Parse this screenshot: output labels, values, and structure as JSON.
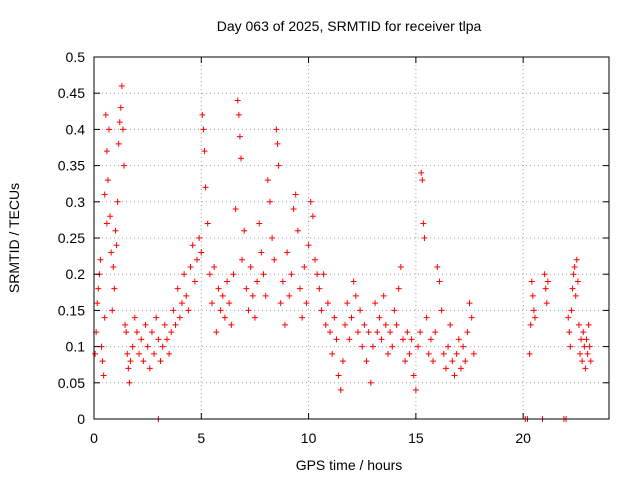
{
  "chart_data": {
    "type": "scatter",
    "title": "Day 063 of 2025, SRMTID for receiver tlpa",
    "xlabel": "GPS time / hours",
    "ylabel": "SRMTID / TECUs",
    "xlim": [
      0,
      24
    ],
    "ylim": [
      0,
      0.5
    ],
    "xticks": [
      0,
      5,
      10,
      15,
      20
    ],
    "xtick_labels": [
      "0",
      "5",
      "10",
      "15",
      "20"
    ],
    "yticks": [
      0,
      0.05,
      0.1,
      0.15,
      0.2,
      0.25,
      0.3,
      0.35,
      0.4,
      0.45,
      0.5
    ],
    "ytick_labels": [
      "0",
      "0.05",
      "0.1",
      "0.15",
      "0.2",
      "0.25",
      "0.3",
      "0.35",
      "0.4",
      "0.45",
      "0.5"
    ],
    "grid": true,
    "legend": "none",
    "marker": "plus",
    "series": [
      {
        "color": "#ff0000",
        "points": [
          [
            0.05,
            0.09
          ],
          [
            0.1,
            0.12
          ],
          [
            0.15,
            0.16
          ],
          [
            0.2,
            0.18
          ],
          [
            0.25,
            0.2
          ],
          [
            0.3,
            0.22
          ],
          [
            0.35,
            0.1
          ],
          [
            0.4,
            0.08
          ],
          [
            0.45,
            0.06
          ],
          [
            0.5,
            0.14
          ],
          [
            0.5,
            0.31
          ],
          [
            0.55,
            0.42
          ],
          [
            0.6,
            0.37
          ],
          [
            0.6,
            0.27
          ],
          [
            0.65,
            0.33
          ],
          [
            0.7,
            0.4
          ],
          [
            0.75,
            0.28
          ],
          [
            0.8,
            0.23
          ],
          [
            0.85,
            0.15
          ],
          [
            0.9,
            0.21
          ],
          [
            0.95,
            0.18
          ],
          [
            1.0,
            0.26
          ],
          [
            1.05,
            0.24
          ],
          [
            1.1,
            0.3
          ],
          [
            1.15,
            0.38
          ],
          [
            1.2,
            0.41
          ],
          [
            1.25,
            0.43
          ],
          [
            1.3,
            0.46
          ],
          [
            1.35,
            0.4
          ],
          [
            1.4,
            0.35
          ],
          [
            1.45,
            0.13
          ],
          [
            1.5,
            0.12
          ],
          [
            1.55,
            0.09
          ],
          [
            1.6,
            0.07
          ],
          [
            1.65,
            0.05
          ],
          [
            1.7,
            0.08
          ],
          [
            1.8,
            0.1
          ],
          [
            1.9,
            0.14
          ],
          [
            2.0,
            0.12
          ],
          [
            2.1,
            0.09
          ],
          [
            2.2,
            0.11
          ],
          [
            2.3,
            0.08
          ],
          [
            2.4,
            0.13
          ],
          [
            2.5,
            0.1
          ],
          [
            2.6,
            0.07
          ],
          [
            2.7,
            0.12
          ],
          [
            2.8,
            0.09
          ],
          [
            2.9,
            0.14
          ],
          [
            3.0,
            0.11
          ],
          [
            3.1,
            0.08
          ],
          [
            3.2,
            0.1
          ],
          [
            3.3,
            0.13
          ],
          [
            3.4,
            0.11
          ],
          [
            3.5,
            0.09
          ],
          [
            3.6,
            0.12
          ],
          [
            3.7,
            0.15
          ],
          [
            3.8,
            0.13
          ],
          [
            3.9,
            0.18
          ],
          [
            4.0,
            0.14
          ],
          [
            4.1,
            0.16
          ],
          [
            4.2,
            0.2
          ],
          [
            4.3,
            0.17
          ],
          [
            4.4,
            0.15
          ],
          [
            4.5,
            0.21
          ],
          [
            4.6,
            0.24
          ],
          [
            4.7,
            0.19
          ],
          [
            4.8,
            0.22
          ],
          [
            4.9,
            0.25
          ],
          [
            5.0,
            0.23
          ],
          [
            5.05,
            0.42
          ],
          [
            5.1,
            0.4
          ],
          [
            5.15,
            0.37
          ],
          [
            5.2,
            0.32
          ],
          [
            5.3,
            0.27
          ],
          [
            5.4,
            0.2
          ],
          [
            5.5,
            0.16
          ],
          [
            5.6,
            0.21
          ],
          [
            5.7,
            0.12
          ],
          [
            5.8,
            0.18
          ],
          [
            5.9,
            0.15
          ],
          [
            6.0,
            0.17
          ],
          [
            6.1,
            0.14
          ],
          [
            6.2,
            0.19
          ],
          [
            6.3,
            0.16
          ],
          [
            6.4,
            0.13
          ],
          [
            6.5,
            0.2
          ],
          [
            6.6,
            0.29
          ],
          [
            6.7,
            0.44
          ],
          [
            6.75,
            0.42
          ],
          [
            6.8,
            0.39
          ],
          [
            6.85,
            0.36
          ],
          [
            6.9,
            0.22
          ],
          [
            7.0,
            0.26
          ],
          [
            7.1,
            0.18
          ],
          [
            7.2,
            0.15
          ],
          [
            7.3,
            0.21
          ],
          [
            7.4,
            0.17
          ],
          [
            7.5,
            0.14
          ],
          [
            7.6,
            0.19
          ],
          [
            7.7,
            0.27
          ],
          [
            7.8,
            0.23
          ],
          [
            7.9,
            0.2
          ],
          [
            8.0,
            0.17
          ],
          [
            8.1,
            0.33
          ],
          [
            8.2,
            0.3
          ],
          [
            8.3,
            0.25
          ],
          [
            8.4,
            0.22
          ],
          [
            8.5,
            0.4
          ],
          [
            8.55,
            0.38
          ],
          [
            8.6,
            0.35
          ],
          [
            8.7,
            0.16
          ],
          [
            8.8,
            0.19
          ],
          [
            8.9,
            0.13
          ],
          [
            9.0,
            0.23
          ],
          [
            9.1,
            0.17
          ],
          [
            9.2,
            0.2
          ],
          [
            9.3,
            0.29
          ],
          [
            9.4,
            0.31
          ],
          [
            9.5,
            0.26
          ],
          [
            9.6,
            0.18
          ],
          [
            9.7,
            0.14
          ],
          [
            9.8,
            0.21
          ],
          [
            9.9,
            0.16
          ],
          [
            10.0,
            0.24
          ],
          [
            10.1,
            0.3
          ],
          [
            10.2,
            0.28
          ],
          [
            10.3,
            0.22
          ],
          [
            10.4,
            0.2
          ],
          [
            10.5,
            0.18
          ],
          [
            10.6,
            0.15
          ],
          [
            10.7,
            0.2
          ],
          [
            10.8,
            0.13
          ],
          [
            10.9,
            0.16
          ],
          [
            11.0,
            0.12
          ],
          [
            11.1,
            0.09
          ],
          [
            11.2,
            0.14
          ],
          [
            11.3,
            0.11
          ],
          [
            11.4,
            0.06
          ],
          [
            11.5,
            0.04
          ],
          [
            11.6,
            0.08
          ],
          [
            11.7,
            0.13
          ],
          [
            11.8,
            0.16
          ],
          [
            11.9,
            0.11
          ],
          [
            12.0,
            0.14
          ],
          [
            12.1,
            0.19
          ],
          [
            12.2,
            0.17
          ],
          [
            12.3,
            0.12
          ],
          [
            12.4,
            0.15
          ],
          [
            12.5,
            0.1
          ],
          [
            12.6,
            0.13
          ],
          [
            12.7,
            0.08
          ],
          [
            12.8,
            0.12
          ],
          [
            12.9,
            0.05
          ],
          [
            13.0,
            0.1
          ],
          [
            13.1,
            0.16
          ],
          [
            13.2,
            0.12
          ],
          [
            13.3,
            0.14
          ],
          [
            13.4,
            0.11
          ],
          [
            13.5,
            0.17
          ],
          [
            13.6,
            0.13
          ],
          [
            13.7,
            0.09
          ],
          [
            13.8,
            0.12
          ],
          [
            13.9,
            0.1
          ],
          [
            14.0,
            0.15
          ],
          [
            14.1,
            0.13
          ],
          [
            14.2,
            0.18
          ],
          [
            14.3,
            0.21
          ],
          [
            14.4,
            0.11
          ],
          [
            14.5,
            0.08
          ],
          [
            14.6,
            0.12
          ],
          [
            14.7,
            0.09
          ],
          [
            14.8,
            0.11
          ],
          [
            14.9,
            0.06
          ],
          [
            15.0,
            0.04
          ],
          [
            15.1,
            0.1
          ],
          [
            15.2,
            0.12
          ],
          [
            15.25,
            0.34
          ],
          [
            15.3,
            0.33
          ],
          [
            15.35,
            0.27
          ],
          [
            15.4,
            0.25
          ],
          [
            15.5,
            0.14
          ],
          [
            15.6,
            0.09
          ],
          [
            15.7,
            0.11
          ],
          [
            15.8,
            0.08
          ],
          [
            15.9,
            0.12
          ],
          [
            16.0,
            0.21
          ],
          [
            16.1,
            0.19
          ],
          [
            16.2,
            0.15
          ],
          [
            16.3,
            0.09
          ],
          [
            16.4,
            0.07
          ],
          [
            16.5,
            0.1
          ],
          [
            16.6,
            0.13
          ],
          [
            16.7,
            0.08
          ],
          [
            16.8,
            0.06
          ],
          [
            16.9,
            0.09
          ],
          [
            17.0,
            0.11
          ],
          [
            17.1,
            0.07
          ],
          [
            17.2,
            0.1
          ],
          [
            17.3,
            0.08
          ],
          [
            17.4,
            0.12
          ],
          [
            17.5,
            0.16
          ],
          [
            17.6,
            0.14
          ],
          [
            17.7,
            0.09
          ],
          [
            20.3,
            0.09
          ],
          [
            20.35,
            0.13
          ],
          [
            20.4,
            0.19
          ],
          [
            20.45,
            0.17
          ],
          [
            20.5,
            0.15
          ],
          [
            20.55,
            0.14
          ],
          [
            21.0,
            0.2
          ],
          [
            21.05,
            0.18
          ],
          [
            21.1,
            0.16
          ],
          [
            21.15,
            0.19
          ],
          [
            22.1,
            0.14
          ],
          [
            22.15,
            0.12
          ],
          [
            22.2,
            0.1
          ],
          [
            22.25,
            0.15
          ],
          [
            22.3,
            0.18
          ],
          [
            22.35,
            0.2
          ],
          [
            22.4,
            0.21
          ],
          [
            22.45,
            0.17
          ],
          [
            22.5,
            0.22
          ],
          [
            22.55,
            0.19
          ],
          [
            22.6,
            0.13
          ],
          [
            22.65,
            0.09
          ],
          [
            22.7,
            0.11
          ],
          [
            22.75,
            0.08
          ],
          [
            22.8,
            0.12
          ],
          [
            22.85,
            0.1
          ],
          [
            22.9,
            0.07
          ],
          [
            22.95,
            0.11
          ],
          [
            23.0,
            0.09
          ],
          [
            23.05,
            0.13
          ],
          [
            23.1,
            0.1
          ],
          [
            23.15,
            0.08
          ],
          [
            3.0,
            0.0
          ],
          [
            20.1,
            0.0
          ],
          [
            20.2,
            0.0
          ],
          [
            20.9,
            0.0
          ],
          [
            21.9,
            0.0
          ],
          [
            22.0,
            0.0
          ]
        ]
      }
    ]
  }
}
